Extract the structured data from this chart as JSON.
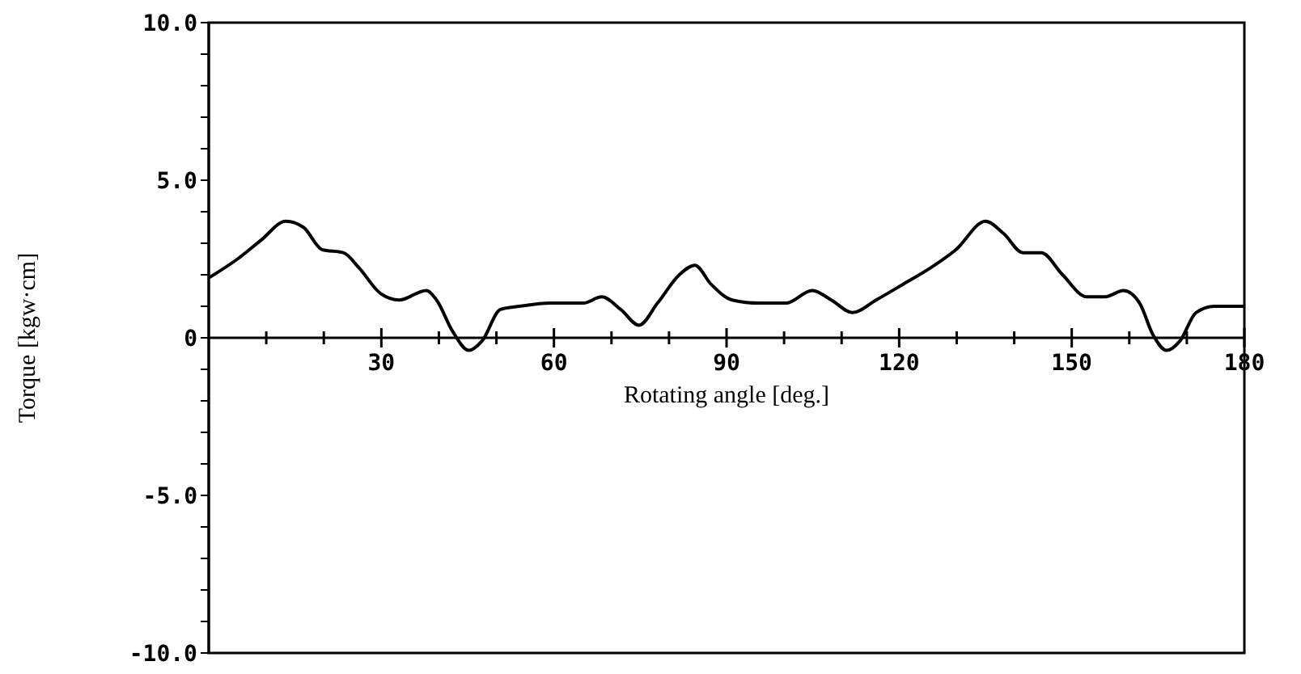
{
  "chart_data": {
    "type": "line",
    "xlabel": "Rotating angle [deg.]",
    "ylabel": "Torque [kgw·cm]",
    "x": [
      0,
      5,
      9.1,
      13.4,
      16.5,
      19.7,
      23.4,
      26.2,
      29.9,
      33.1,
      37.8,
      39.6,
      42.4,
      45.2,
      47.5,
      50.7,
      54,
      59.5,
      65.1,
      68.3,
      71.6,
      74.8,
      78,
      81.8,
      84.5,
      87.3,
      91,
      95.7,
      100.3,
      104.9,
      108.2,
      111.9,
      116,
      120.7,
      125.3,
      129.9,
      135,
      138.2,
      141.5,
      144.7,
      148.4,
      152.6,
      155.8,
      159,
      161.8,
      164.1,
      166.5,
      168.8,
      171.6,
      174.8,
      180
    ],
    "series": [
      {
        "color": "#000000",
        "values": [
          1.9,
          2.5,
          3.1,
          3.7,
          3.5,
          2.8,
          2.7,
          2.2,
          1.4,
          1.2,
          1.5,
          1.2,
          0.2,
          -0.4,
          -0.1,
          0.9,
          1.0,
          1.1,
          1.1,
          1.3,
          0.9,
          0.4,
          1.1,
          2.0,
          2.3,
          1.7,
          1.2,
          1.1,
          1.1,
          1.5,
          1.2,
          0.8,
          1.2,
          1.7,
          2.2,
          2.8,
          3.7,
          3.3,
          2.7,
          2.7,
          2.0,
          1.3,
          1.3,
          1.5,
          1.1,
          0.1,
          -0.4,
          -0.1,
          0.8,
          1.0,
          1.0
        ]
      }
    ],
    "xlim": [
      0,
      180
    ],
    "xticks": [
      {
        "value": 10,
        "label": null
      },
      {
        "value": 20,
        "label": null
      },
      30,
      {
        "value": 40,
        "label": null
      },
      {
        "value": 50,
        "label": null
      },
      60,
      {
        "value": 70,
        "label": null
      },
      {
        "value": 80,
        "label": null
      },
      90,
      {
        "value": 100,
        "label": null
      },
      {
        "value": 110,
        "label": null
      },
      120,
      {
        "value": 130,
        "label": null
      },
      {
        "value": 140,
        "label": null
      },
      150,
      {
        "value": 160,
        "label": null
      },
      {
        "value": 170,
        "label": null
      },
      180
    ],
    "ylim": [
      -10,
      10
    ],
    "yticks": [
      {
        "value": -10,
        "label": "-10.0"
      },
      {
        "value": -9,
        "label": null
      },
      {
        "value": -8,
        "label": null
      },
      {
        "value": -7,
        "label": null
      },
      {
        "value": -6,
        "label": null
      },
      {
        "value": -5,
        "label": "-5.0"
      },
      {
        "value": -4,
        "label": null
      },
      {
        "value": -3,
        "label": null
      },
      {
        "value": -2,
        "label": null
      },
      {
        "value": -1,
        "label": null
      },
      0,
      {
        "value": 1,
        "label": null
      },
      {
        "value": 2,
        "label": null
      },
      {
        "value": 3,
        "label": null
      },
      {
        "value": 4,
        "label": null
      },
      {
        "value": 5,
        "label": "5.0"
      },
      {
        "value": 6,
        "label": null
      },
      {
        "value": 7,
        "label": null
      },
      {
        "value": 8,
        "label": null
      },
      {
        "value": 9,
        "label": null
      },
      {
        "value": 10,
        "label": "10.0"
      }
    ],
    "grid": false,
    "legend": false,
    "marker": "none",
    "line_style": "solid"
  }
}
